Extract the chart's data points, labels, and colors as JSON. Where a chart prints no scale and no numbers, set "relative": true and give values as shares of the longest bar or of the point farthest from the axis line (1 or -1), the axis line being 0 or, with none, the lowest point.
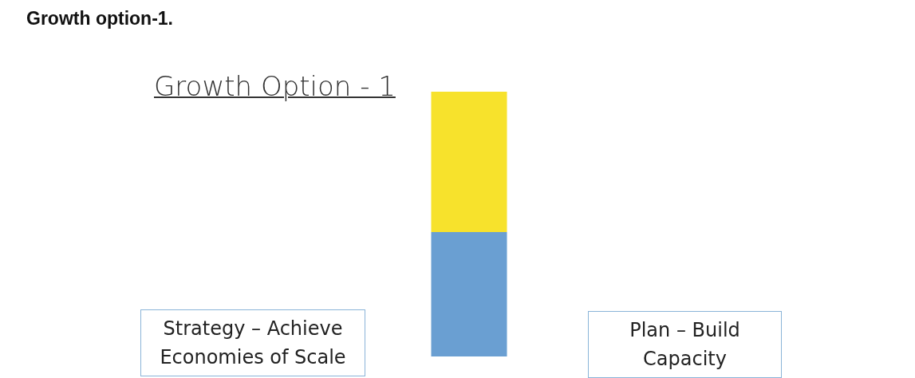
{
  "chart_data": {
    "type": "bar",
    "title": "Growth option-1.",
    "subtitle": "Growth Option - 1",
    "categories": [
      null
    ],
    "stacked": true,
    "relative": true,
    "series": [
      {
        "color": "#6a9fd2",
        "values": [
          0.47
        ]
      },
      {
        "color": "#f7e22c",
        "values": [
          0.53
        ]
      }
    ],
    "annotations": [
      "Strategy – Achieve Economies of Scale",
      "Plan – Build Capacity"
    ],
    "legend": false
  }
}
